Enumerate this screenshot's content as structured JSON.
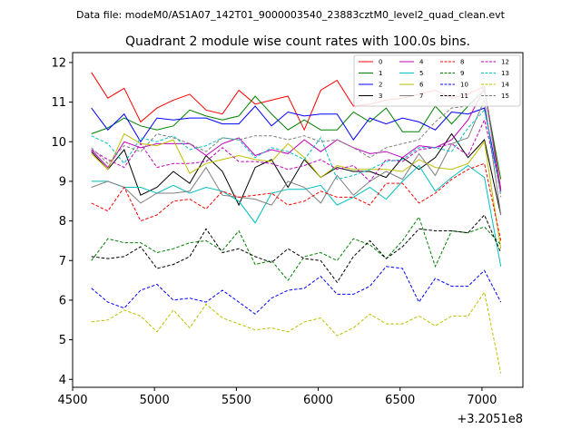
{
  "suptitle": "Data file: modeM0/AS1A07_142T01_9000003540_23883cztM0_level2_quad_clean.evt",
  "chart_data": {
    "type": "line",
    "title": "Quadrant 2 module wise count rates with 100.0s bins.",
    "xlabel": "",
    "ylabel": "",
    "x_offset_label": "+3.2051e8",
    "xlim": [
      4500,
      7250
    ],
    "ylim": [
      3.8,
      12.25
    ],
    "xticks": [
      "4500",
      "5000",
      "5500",
      "6000",
      "6500",
      "7000"
    ],
    "yticks": [
      "4",
      "5",
      "6",
      "7",
      "8",
      "9",
      "10",
      "11",
      "12"
    ],
    "grid": false,
    "legend": {
      "placement": "top-right",
      "columns": 4
    },
    "x": [
      4615,
      4715,
      4815,
      4915,
      5015,
      5115,
      5215,
      5315,
      5415,
      5515,
      5615,
      5715,
      5815,
      5915,
      6015,
      6115,
      6215,
      6315,
      6415,
      6515,
      6615,
      6715,
      6815,
      6915,
      7015,
      7115
    ],
    "series": [
      {
        "name": "0",
        "color": "#ff0000",
        "dash": "solid",
        "values": [
          11.75,
          11.1,
          11.35,
          10.5,
          10.85,
          11.05,
          11.2,
          10.8,
          10.7,
          11.3,
          10.95,
          11.05,
          11.15,
          10.3,
          11.3,
          11.55,
          10.9,
          10.95,
          11.05,
          11.1,
          11.2,
          11.3,
          11.1,
          11.2,
          11.4,
          8.8
        ]
      },
      {
        "name": "1",
        "color": "#008000",
        "dash": "solid",
        "values": [
          10.2,
          10.35,
          10.6,
          10.4,
          10.3,
          10.4,
          10.8,
          10.65,
          10.55,
          10.65,
          11.15,
          10.7,
          10.3,
          10.55,
          10.3,
          10.3,
          10.75,
          10.5,
          10.85,
          10.25,
          10.25,
          10.9,
          10.45,
          10.9,
          11.3,
          9.05
        ]
      },
      {
        "name": "2",
        "color": "#0000ff",
        "dash": "solid",
        "values": [
          10.85,
          10.3,
          10.7,
          10.0,
          10.6,
          10.55,
          10.6,
          10.6,
          10.45,
          10.45,
          10.9,
          10.4,
          10.75,
          10.65,
          10.7,
          10.7,
          10.05,
          10.6,
          10.45,
          10.6,
          10.5,
          10.3,
          10.75,
          10.7,
          10.85,
          8.75
        ]
      },
      {
        "name": "3",
        "color": "#000000",
        "dash": "solid",
        "values": [
          9.75,
          9.3,
          9.8,
          8.65,
          8.85,
          9.25,
          8.95,
          9.65,
          9.25,
          8.4,
          9.35,
          9.55,
          8.85,
          9.55,
          9.1,
          9.35,
          9.25,
          9.25,
          9.1,
          9.6,
          9.3,
          9.6,
          10.2,
          9.6,
          10.05,
          8.15
        ]
      },
      {
        "name": "4",
        "color": "#bf00bf",
        "dash": "solid",
        "values": [
          9.8,
          9.35,
          10.0,
          9.85,
          9.95,
          9.95,
          9.95,
          9.65,
          9.95,
          10.1,
          9.65,
          9.8,
          9.7,
          10.05,
          9.75,
          10.05,
          9.85,
          9.7,
          9.75,
          9.6,
          9.9,
          9.85,
          10.05,
          10.55,
          11.35,
          8.75
        ]
      },
      {
        "name": "5",
        "color": "#00bfbf",
        "dash": "solid",
        "values": [
          9.0,
          9.0,
          8.85,
          8.85,
          8.7,
          8.9,
          8.7,
          8.85,
          8.75,
          8.5,
          7.95,
          8.7,
          8.8,
          8.8,
          8.9,
          8.4,
          8.6,
          8.85,
          8.55,
          9.0,
          9.4,
          8.75,
          9.1,
          9.4,
          9.1,
          6.85
        ]
      },
      {
        "name": "6",
        "color": "#bfbf00",
        "dash": "solid",
        "values": [
          9.7,
          9.3,
          10.2,
          9.95,
          9.9,
          10.05,
          9.2,
          9.45,
          9.55,
          9.65,
          9.55,
          9.5,
          9.95,
          9.6,
          9.1,
          9.4,
          9.3,
          9.3,
          9.3,
          9.25,
          9.55,
          9.35,
          9.3,
          9.45,
          10.0,
          7.3
        ]
      },
      {
        "name": "7",
        "color": "#808080",
        "dash": "solid",
        "values": [
          8.85,
          9.0,
          8.85,
          8.45,
          8.7,
          8.7,
          8.75,
          9.35,
          8.65,
          8.6,
          8.55,
          8.4,
          9.0,
          8.85,
          8.45,
          9.15,
          8.65,
          9.0,
          9.25,
          9.05,
          9.7,
          9.15,
          9.95,
          10.1,
          11.05,
          8.15
        ]
      },
      {
        "name": "8",
        "color": "#ff0000",
        "dash": "dashed",
        "values": [
          8.45,
          8.25,
          8.85,
          8.0,
          8.15,
          8.5,
          8.55,
          8.3,
          8.75,
          8.6,
          8.65,
          8.7,
          8.4,
          8.5,
          8.75,
          8.6,
          8.6,
          8.4,
          8.95,
          8.95,
          8.45,
          8.7,
          9.05,
          9.3,
          9.45,
          7.5
        ]
      },
      {
        "name": "9",
        "color": "#008000",
        "dash": "dashed",
        "values": [
          7.0,
          7.55,
          7.45,
          7.45,
          7.2,
          7.3,
          7.45,
          7.5,
          7.25,
          7.75,
          6.9,
          7.0,
          6.5,
          7.1,
          7.2,
          7.0,
          7.55,
          7.4,
          7.05,
          7.5,
          8.1,
          6.85,
          7.75,
          7.7,
          7.85,
          7.4
        ]
      },
      {
        "name": "10",
        "color": "#0000ff",
        "dash": "dashed",
        "values": [
          6.3,
          5.95,
          5.8,
          6.25,
          6.4,
          6.0,
          6.05,
          5.95,
          6.25,
          5.95,
          5.65,
          6.05,
          6.25,
          6.3,
          6.6,
          6.15,
          6.15,
          6.35,
          6.85,
          6.8,
          5.95,
          6.55,
          6.35,
          6.35,
          6.75,
          5.95
        ]
      },
      {
        "name": "11",
        "color": "#000000",
        "dash": "dashed",
        "values": [
          7.1,
          7.05,
          7.1,
          7.35,
          6.8,
          6.9,
          7.1,
          7.8,
          7.2,
          7.3,
          7.1,
          6.95,
          7.3,
          7.05,
          7.0,
          6.45,
          7.1,
          7.5,
          7.05,
          7.35,
          7.8,
          7.75,
          7.75,
          7.7,
          8.15,
          7.2
        ]
      },
      {
        "name": "12",
        "color": "#bf00bf",
        "dash": "dashed",
        "values": [
          9.8,
          9.55,
          9.35,
          9.95,
          9.35,
          9.45,
          9.45,
          9.5,
          9.85,
          9.5,
          9.5,
          9.45,
          9.3,
          9.4,
          9.55,
          9.3,
          9.4,
          9.0,
          9.55,
          9.5,
          9.8,
          9.85,
          9.95,
          9.65,
          10.55,
          8.8
        ]
      },
      {
        "name": "13",
        "color": "#00bfbf",
        "dash": "dashed",
        "values": [
          10.15,
          9.95,
          9.45,
          10.1,
          10.0,
          10.15,
          9.8,
          9.9,
          10.1,
          10.05,
          9.6,
          9.85,
          9.75,
          9.55,
          10.1,
          9.05,
          9.15,
          9.3,
          9.5,
          9.55,
          9.85,
          9.85,
          9.75,
          10.35,
          10.8,
          8.65
        ]
      },
      {
        "name": "14",
        "color": "#bfbf00",
        "dash": "dashed",
        "values": [
          5.45,
          5.5,
          5.75,
          5.6,
          5.2,
          5.75,
          5.3,
          5.9,
          5.55,
          5.4,
          5.25,
          5.3,
          5.2,
          5.45,
          5.55,
          5.1,
          5.3,
          5.65,
          5.4,
          5.4,
          5.6,
          5.35,
          5.6,
          5.6,
          6.2,
          4.15
        ]
      },
      {
        "name": "15",
        "color": "#808080",
        "dash": "dashed",
        "values": [
          9.85,
          9.45,
          9.9,
          9.75,
          10.2,
          10.1,
          9.95,
          9.75,
          10.1,
          10.05,
          10.15,
          10.15,
          10.05,
          10.15,
          10.0,
          10.05,
          9.85,
          9.6,
          9.85,
          9.95,
          10.05,
          10.5,
          10.85,
          10.9,
          11.4,
          8.6
        ]
      }
    ]
  }
}
